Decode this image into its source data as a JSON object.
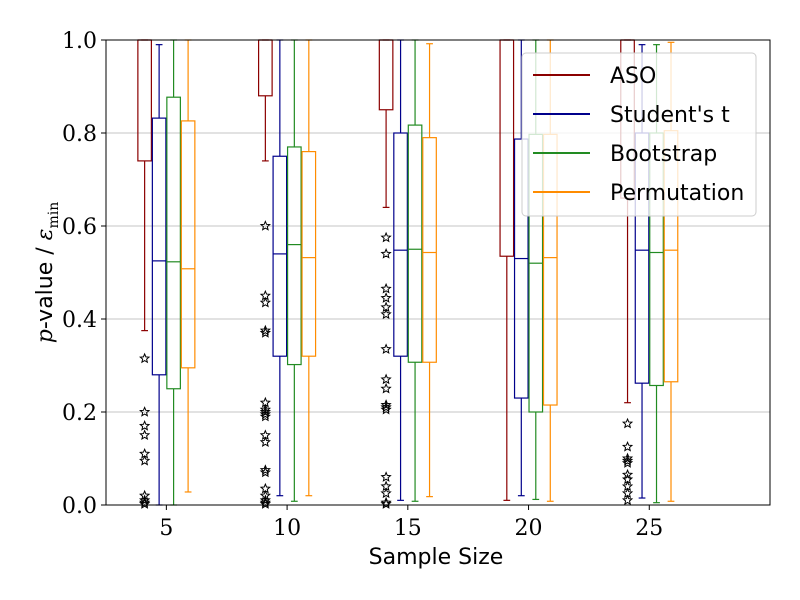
{
  "chart_data": {
    "type": "box",
    "xlabel": "Sample Size",
    "ylabel_prefix": "p",
    "ylabel_rest": "-value / ",
    "ylabel_eps": "ε",
    "ylabel_sub": "min",
    "xlim": [
      2.5,
      30
    ],
    "ylim": [
      0,
      1
    ],
    "yticks": [
      0,
      0.2,
      0.4,
      0.6,
      0.8,
      1
    ],
    "ytick_labels": [
      "0.0",
      "0.2",
      "0.4",
      "0.6",
      "0.8",
      "1.0"
    ],
    "xticks": [
      5,
      10,
      15,
      20,
      25
    ],
    "xtick_labels": [
      "5",
      "10",
      "15",
      "20",
      "25"
    ],
    "grid": "horizontal",
    "legend_position": "top-right",
    "series": [
      {
        "name": "ASO",
        "color": "#8b0000",
        "boxes": [
          {
            "x": 5,
            "q1": 0.74,
            "median": 1.0,
            "q3": 1.0,
            "whisker_low": 0.375,
            "whisker_high": 1.0,
            "outliers": [
              0.315,
              0.2,
              0.17,
              0.15,
              0.11,
              0.095,
              0.02,
              0.01,
              0.005,
              0.002
            ]
          },
          {
            "x": 10,
            "q1": 0.88,
            "median": 1.0,
            "q3": 1.0,
            "whisker_low": 0.74,
            "whisker_high": 1.0,
            "outliers": [
              0.6,
              0.45,
              0.435,
              0.375,
              0.37,
              0.22,
              0.205,
              0.2,
              0.195,
              0.19,
              0.15,
              0.135,
              0.075,
              0.07,
              0.035,
              0.02,
              0.01,
              0.005,
              0.002
            ]
          },
          {
            "x": 15,
            "q1": 0.85,
            "median": 1.0,
            "q3": 1.0,
            "whisker_low": 0.64,
            "whisker_high": 1.0,
            "outliers": [
              0.575,
              0.54,
              0.465,
              0.445,
              0.425,
              0.41,
              0.335,
              0.27,
              0.25,
              0.215,
              0.21,
              0.205,
              0.06,
              0.04,
              0.025,
              0.005,
              0.002
            ]
          },
          {
            "x": 20,
            "q1": 0.535,
            "median": 1.0,
            "q3": 1.0,
            "whisker_low": 0.01,
            "whisker_high": 1.0,
            "outliers": []
          },
          {
            "x": 25,
            "q1": 0.66,
            "median": 1.0,
            "q3": 1.0,
            "whisker_low": 0.22,
            "whisker_high": 1.0,
            "outliers": [
              0.175,
              0.125,
              0.1,
              0.095,
              0.09,
              0.065,
              0.055,
              0.04,
              0.025,
              0.01
            ]
          }
        ]
      },
      {
        "name": "Student's t",
        "color": "#00008b",
        "boxes": [
          {
            "x": 5,
            "q1": 0.28,
            "median": 0.525,
            "q3": 0.832,
            "whisker_low": 0.0,
            "whisker_high": 0.99,
            "outliers": []
          },
          {
            "x": 10,
            "q1": 0.32,
            "median": 0.54,
            "q3": 0.75,
            "whisker_low": 0.02,
            "whisker_high": 1.0,
            "outliers": []
          },
          {
            "x": 15,
            "q1": 0.32,
            "median": 0.548,
            "q3": 0.8,
            "whisker_low": 0.01,
            "whisker_high": 1.0,
            "outliers": []
          },
          {
            "x": 20,
            "q1": 0.23,
            "median": 0.53,
            "q3": 0.787,
            "whisker_low": 0.02,
            "whisker_high": 1.0,
            "outliers": []
          },
          {
            "x": 25,
            "q1": 0.262,
            "median": 0.548,
            "q3": 0.8,
            "whisker_low": 0.015,
            "whisker_high": 0.99,
            "outliers": []
          }
        ]
      },
      {
        "name": "Bootstrap",
        "color": "#228b22",
        "boxes": [
          {
            "x": 5,
            "q1": 0.25,
            "median": 0.523,
            "q3": 0.877,
            "whisker_low": 0.0,
            "whisker_high": 1.0,
            "outliers": []
          },
          {
            "x": 10,
            "q1": 0.302,
            "median": 0.56,
            "q3": 0.77,
            "whisker_low": 0.008,
            "whisker_high": 1.0,
            "outliers": []
          },
          {
            "x": 15,
            "q1": 0.307,
            "median": 0.55,
            "q3": 0.817,
            "whisker_low": 0.008,
            "whisker_high": 1.0,
            "outliers": []
          },
          {
            "x": 20,
            "q1": 0.2,
            "median": 0.52,
            "q3": 0.797,
            "whisker_low": 0.012,
            "whisker_high": 1.0,
            "outliers": []
          },
          {
            "x": 25,
            "q1": 0.257,
            "median": 0.543,
            "q3": 0.8,
            "whisker_low": 0.005,
            "whisker_high": 0.99,
            "outliers": []
          }
        ]
      },
      {
        "name": "Permutation",
        "color": "#ff8c00",
        "boxes": [
          {
            "x": 5,
            "q1": 0.295,
            "median": 0.508,
            "q3": 0.826,
            "whisker_low": 0.028,
            "whisker_high": 1.0,
            "outliers": []
          },
          {
            "x": 10,
            "q1": 0.32,
            "median": 0.532,
            "q3": 0.76,
            "whisker_low": 0.02,
            "whisker_high": 1.0,
            "outliers": []
          },
          {
            "x": 15,
            "q1": 0.307,
            "median": 0.543,
            "q3": 0.79,
            "whisker_low": 0.018,
            "whisker_high": 0.992,
            "outliers": []
          },
          {
            "x": 20,
            "q1": 0.215,
            "median": 0.532,
            "q3": 0.797,
            "whisker_low": 0.008,
            "whisker_high": 1.0,
            "outliers": []
          },
          {
            "x": 25,
            "q1": 0.265,
            "median": 0.548,
            "q3": 0.805,
            "whisker_low": 0.008,
            "whisker_high": 0.995,
            "outliers": []
          }
        ]
      }
    ]
  }
}
